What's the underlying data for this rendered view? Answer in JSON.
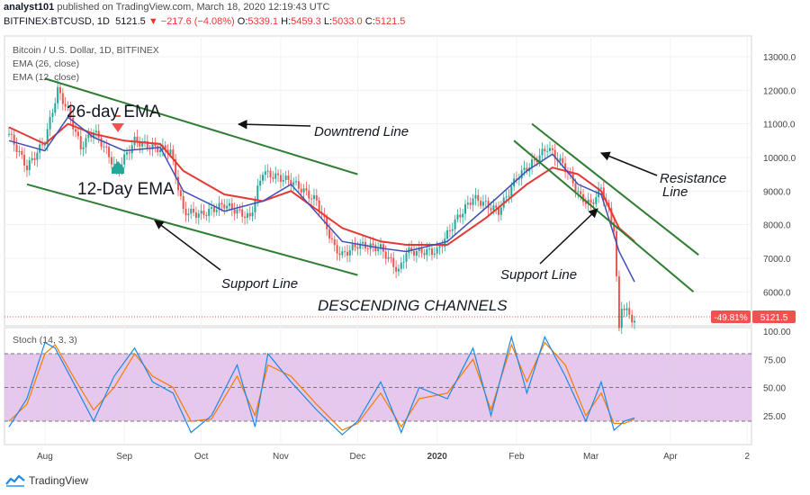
{
  "header": {
    "user": "analyst101",
    "published_text": "published on TradingView.com, March 18, 2020 12:19:43 UTC",
    "symbol": "BITFINEX:BTCUSD, 1D",
    "price": "5121.5",
    "change": "−217.6 (−4.08%)",
    "ohlc": "O:5339.1 H:5459.3 L:5033.0 C:5121.5",
    "open_label": "O:",
    "open": "5339.1",
    "high_label": "H:",
    "high": "5459.3",
    "low_label": "L:",
    "low": "5033.0",
    "close_label": "C:",
    "close": "5121.5"
  },
  "legend": {
    "title": "Bitcoin / U.S. Dollar, 1D, BITFINEX",
    "ema26": "EMA (26, close)",
    "ema12": "EMA (12, close)",
    "stoch": "Stoch (14, 3, 3)"
  },
  "annotations": {
    "ema26_label": "26-day EMA",
    "ema12_label": "12-Day EMA",
    "downtrend": "Downtrend Line",
    "support1": "Support Line",
    "support2": "Support Line",
    "resistance": "Resistance\nLine",
    "channels": "DESCENDING CHANNELS"
  },
  "price_badge": {
    "pct": "-49.81%",
    "price": "5121.5"
  },
  "footer": {
    "brand": "TradingView"
  },
  "colors": {
    "up": "#26a69a",
    "down": "#ef5350",
    "ema12": "#3f51b5",
    "ema26": "#e53935",
    "trend": "#2e7d32",
    "stoch_fill": "#e1bee7"
  },
  "chart_data": {
    "type": "line",
    "title": "Bitcoin / U.S. Dollar, 1D, BITFINEX",
    "x_ticks": [
      "Aug",
      "Sep",
      "Oct",
      "Nov",
      "Dec",
      "2020",
      "Feb",
      "Mar",
      "Apr",
      "2"
    ],
    "y_ticks": [
      "13000.0",
      "12000.0",
      "11000.0",
      "10000.0",
      "9000.0",
      "8000.0",
      "7000.0",
      "6000.0"
    ],
    "ylim": [
      5000,
      13400
    ],
    "series": [
      {
        "name": "BTCUSD close",
        "x": [
          "2019-07-18",
          "2019-07-25",
          "2019-08-01",
          "2019-08-06",
          "2019-08-10",
          "2019-08-15",
          "2019-08-20",
          "2019-08-25",
          "2019-08-29",
          "2019-09-05",
          "2019-09-12",
          "2019-09-19",
          "2019-09-24",
          "2019-10-01",
          "2019-10-10",
          "2019-10-20",
          "2019-10-25",
          "2019-10-27",
          "2019-11-05",
          "2019-11-15",
          "2019-11-22",
          "2019-11-25",
          "2019-12-01",
          "2019-12-10",
          "2019-12-17",
          "2019-12-20",
          "2020-01-01",
          "2020-01-08",
          "2020-01-15",
          "2020-01-25",
          "2020-02-01",
          "2020-02-08",
          "2020-02-13",
          "2020-02-20",
          "2020-02-26",
          "2020-03-01",
          "2020-03-05",
          "2020-03-10",
          "2020-03-12",
          "2020-03-13",
          "2020-03-16",
          "2020-03-18"
        ],
        "values": [
          10700,
          9700,
          10500,
          12000,
          11400,
          10300,
          10800,
          10200,
          9600,
          10500,
          10300,
          10200,
          8400,
          8300,
          8600,
          8200,
          9600,
          9500,
          9300,
          8700,
          7300,
          7100,
          7400,
          7300,
          6600,
          7200,
          7200,
          8100,
          8800,
          8400,
          9400,
          9900,
          10300,
          9700,
          8800,
          8600,
          9100,
          7900,
          4850,
          5600,
          5300,
          5121.5
        ]
      },
      {
        "name": "EMA (12, close)",
        "x": [
          "2019-07-18",
          "2019-08-01",
          "2019-08-10",
          "2019-08-20",
          "2019-09-01",
          "2019-09-15",
          "2019-09-24",
          "2019-10-10",
          "2019-10-25",
          "2019-11-05",
          "2019-11-25",
          "2019-12-10",
          "2019-12-20",
          "2020-01-05",
          "2020-01-20",
          "2020-02-05",
          "2020-02-15",
          "2020-02-25",
          "2020-03-05",
          "2020-03-12",
          "2020-03-18"
        ],
        "values": [
          10500,
          10200,
          11200,
          10600,
          10200,
          10300,
          9000,
          8400,
          8700,
          9200,
          7500,
          7300,
          7200,
          7500,
          8500,
          9600,
          10100,
          9200,
          8900,
          7200,
          6300
        ]
      },
      {
        "name": "EMA (26, close)",
        "x": [
          "2019-07-18",
          "2019-08-01",
          "2019-08-10",
          "2019-08-20",
          "2019-09-01",
          "2019-09-15",
          "2019-09-24",
          "2019-10-10",
          "2019-10-25",
          "2019-11-05",
          "2019-11-25",
          "2019-12-10",
          "2019-12-20",
          "2020-01-05",
          "2020-01-20",
          "2020-02-05",
          "2020-02-15",
          "2020-02-25",
          "2020-03-05",
          "2020-03-12",
          "2020-03-18"
        ],
        "values": [
          10900,
          10400,
          11000,
          10700,
          10500,
          10400,
          9600,
          8900,
          8700,
          9000,
          7900,
          7500,
          7400,
          7400,
          8200,
          9200,
          9700,
          9500,
          9000,
          7900,
          7500
        ]
      }
    ],
    "trend_lines": [
      {
        "label": "Downtrend Line",
        "from": [
          "2019-08-01",
          12350
        ],
        "to": [
          "2019-12-01",
          9500
        ]
      },
      {
        "label": "Support Line",
        "from": [
          "2019-07-25",
          9200
        ],
        "to": [
          "2019-12-01",
          6500
        ]
      },
      {
        "label": "Resistance Line",
        "from": [
          "2020-02-07",
          11000
        ],
        "to": [
          "2020-04-12",
          7100
        ]
      },
      {
        "label": "Support Line",
        "from": [
          "2020-01-31",
          10500
        ],
        "to": [
          "2020-04-10",
          6000
        ]
      }
    ],
    "stoch": {
      "name": "Stoch (14, 3, 3)",
      "y_ticks": [
        "100.00",
        "75.00",
        "50.00",
        "25.00"
      ],
      "upper_band": 80,
      "lower_band": 20,
      "x": [
        "2019-07-18",
        "2019-07-25",
        "2019-08-01",
        "2019-08-05",
        "2019-08-12",
        "2019-08-20",
        "2019-08-28",
        "2019-09-05",
        "2019-09-12",
        "2019-09-20",
        "2019-09-27",
        "2019-10-05",
        "2019-10-15",
        "2019-10-22",
        "2019-10-27",
        "2019-11-05",
        "2019-11-15",
        "2019-11-25",
        "2019-12-01",
        "2019-12-10",
        "2019-12-18",
        "2019-12-25",
        "2020-01-05",
        "2020-01-15",
        "2020-01-22",
        "2020-01-30",
        "2020-02-05",
        "2020-02-12",
        "2020-02-20",
        "2020-02-28",
        "2020-03-05",
        "2020-03-10",
        "2020-03-14",
        "2020-03-18"
      ],
      "k": [
        15,
        40,
        90,
        85,
        55,
        20,
        60,
        85,
        55,
        45,
        10,
        25,
        70,
        15,
        80,
        55,
        30,
        8,
        20,
        55,
        10,
        50,
        40,
        85,
        25,
        95,
        45,
        95,
        60,
        20,
        55,
        12,
        20,
        23
      ],
      "d": [
        20,
        35,
        80,
        88,
        60,
        30,
        50,
        80,
        60,
        50,
        20,
        22,
        60,
        25,
        70,
        60,
        35,
        12,
        18,
        45,
        15,
        40,
        45,
        75,
        30,
        88,
        55,
        90,
        70,
        25,
        45,
        18,
        18,
        22
      ]
    }
  }
}
